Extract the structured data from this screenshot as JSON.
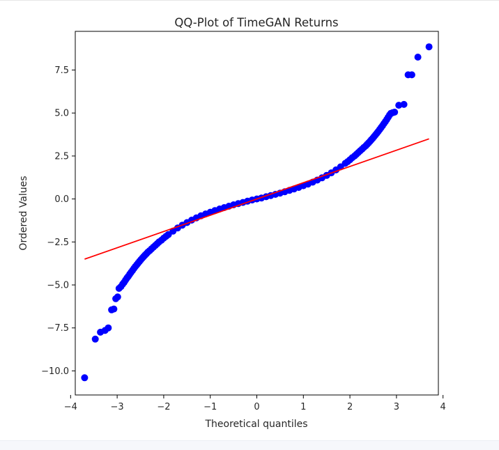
{
  "chart_data": {
    "type": "scatter",
    "title": "QQ-Plot of TimeGAN Returns",
    "xlabel": "Theoretical quantiles",
    "ylabel": "Ordered Values",
    "xlim": [
      -3.9,
      3.9
    ],
    "ylim": [
      -11.4,
      9.75
    ],
    "x_ticks": [
      {
        "value": -4,
        "label": "−4"
      },
      {
        "value": -3,
        "label": "−3"
      },
      {
        "value": -2,
        "label": "−2"
      },
      {
        "value": -1,
        "label": "−1"
      },
      {
        "value": 0,
        "label": "0"
      },
      {
        "value": 1,
        "label": "1"
      },
      {
        "value": 2,
        "label": "2"
      },
      {
        "value": 3,
        "label": "3"
      },
      {
        "value": 4,
        "label": "4"
      }
    ],
    "y_ticks": [
      {
        "value": -10,
        "label": "−10.0"
      },
      {
        "value": -7.5,
        "label": "−7.5"
      },
      {
        "value": -5,
        "label": "−5.0"
      },
      {
        "value": -2.5,
        "label": "−2.5"
      },
      {
        "value": 0,
        "label": "0.0"
      },
      {
        "value": 2.5,
        "label": "2.5"
      },
      {
        "value": 5,
        "label": "5.0"
      },
      {
        "value": 7.5,
        "label": "7.5"
      }
    ],
    "grid": false,
    "series": [
      {
        "marker": "circle",
        "color": "#0000ff",
        "points": [
          [
            -3.7,
            -10.4
          ],
          [
            -3.47,
            -8.15
          ],
          [
            -3.36,
            -7.75
          ],
          [
            -3.26,
            -7.65
          ],
          [
            -3.19,
            -7.5
          ],
          [
            -3.12,
            -6.45
          ],
          [
            -3.07,
            -6.4
          ],
          [
            -3.03,
            -5.8
          ],
          [
            -2.99,
            -5.7
          ],
          [
            -2.96,
            -5.2
          ],
          [
            -2.92,
            -5.1
          ],
          [
            -2.88,
            -4.95
          ],
          [
            -2.85,
            -4.85
          ],
          [
            -2.82,
            -4.72
          ],
          [
            -2.79,
            -4.6
          ],
          [
            -2.76,
            -4.5
          ],
          [
            -2.73,
            -4.38
          ],
          [
            -2.7,
            -4.26
          ],
          [
            -2.67,
            -4.15
          ],
          [
            -2.64,
            -4.04
          ],
          [
            -2.61,
            -3.93
          ],
          [
            -2.58,
            -3.83
          ],
          [
            -2.55,
            -3.73
          ],
          [
            -2.52,
            -3.63
          ],
          [
            -2.49,
            -3.53
          ],
          [
            -2.46,
            -3.44
          ],
          [
            -2.43,
            -3.35
          ],
          [
            -2.4,
            -3.26
          ],
          [
            -2.37,
            -3.18
          ],
          [
            -2.34,
            -3.09
          ],
          [
            -2.3,
            -3.0
          ],
          [
            -2.26,
            -2.9
          ],
          [
            -2.22,
            -2.8
          ],
          [
            -2.18,
            -2.7
          ],
          [
            -2.14,
            -2.6
          ],
          [
            -2.1,
            -2.5
          ],
          [
            -2.05,
            -2.4
          ],
          [
            -2.0,
            -2.28
          ],
          [
            -1.95,
            -2.17
          ],
          [
            -1.9,
            -2.07
          ],
          [
            -1.8,
            -1.87
          ],
          [
            -1.7,
            -1.69
          ],
          [
            -1.6,
            -1.52
          ],
          [
            -1.5,
            -1.37
          ],
          [
            -1.4,
            -1.23
          ],
          [
            -1.3,
            -1.1
          ],
          [
            -1.2,
            -0.98
          ],
          [
            -1.1,
            -0.87
          ],
          [
            -1.0,
            -0.77
          ],
          [
            -0.9,
            -0.67
          ],
          [
            -0.8,
            -0.58
          ],
          [
            -0.7,
            -0.5
          ],
          [
            -0.6,
            -0.42
          ],
          [
            -0.5,
            -0.34
          ],
          [
            -0.4,
            -0.27
          ],
          [
            -0.3,
            -0.2
          ],
          [
            -0.2,
            -0.13
          ],
          [
            -0.1,
            -0.06
          ],
          [
            0.0,
            0.0
          ],
          [
            0.1,
            0.06
          ],
          [
            0.2,
            0.13
          ],
          [
            0.3,
            0.2
          ],
          [
            0.4,
            0.27
          ],
          [
            0.5,
            0.34
          ],
          [
            0.6,
            0.42
          ],
          [
            0.7,
            0.5
          ],
          [
            0.8,
            0.58
          ],
          [
            0.9,
            0.67
          ],
          [
            1.0,
            0.77
          ],
          [
            1.1,
            0.87
          ],
          [
            1.2,
            0.98
          ],
          [
            1.3,
            1.1
          ],
          [
            1.4,
            1.23
          ],
          [
            1.5,
            1.37
          ],
          [
            1.6,
            1.52
          ],
          [
            1.7,
            1.69
          ],
          [
            1.8,
            1.87
          ],
          [
            1.9,
            2.07
          ],
          [
            1.95,
            2.17
          ],
          [
            2.0,
            2.28
          ],
          [
            2.05,
            2.4
          ],
          [
            2.1,
            2.5
          ],
          [
            2.14,
            2.6
          ],
          [
            2.18,
            2.7
          ],
          [
            2.22,
            2.8
          ],
          [
            2.26,
            2.9
          ],
          [
            2.3,
            3.0
          ],
          [
            2.34,
            3.09
          ],
          [
            2.37,
            3.18
          ],
          [
            2.4,
            3.26
          ],
          [
            2.43,
            3.35
          ],
          [
            2.46,
            3.44
          ],
          [
            2.49,
            3.53
          ],
          [
            2.52,
            3.63
          ],
          [
            2.55,
            3.73
          ],
          [
            2.58,
            3.83
          ],
          [
            2.61,
            3.93
          ],
          [
            2.64,
            4.04
          ],
          [
            2.67,
            4.15
          ],
          [
            2.7,
            4.26
          ],
          [
            2.73,
            4.38
          ],
          [
            2.76,
            4.5
          ],
          [
            2.79,
            4.62
          ],
          [
            2.82,
            4.75
          ],
          [
            2.85,
            4.88
          ],
          [
            2.88,
            4.98
          ],
          [
            2.92,
            5.02
          ],
          [
            2.96,
            5.05
          ],
          [
            3.05,
            5.45
          ],
          [
            3.16,
            5.5
          ],
          [
            3.25,
            7.22
          ],
          [
            3.33,
            7.22
          ],
          [
            3.46,
            8.25
          ],
          [
            3.7,
            8.85
          ]
        ]
      }
    ],
    "fit_line": {
      "color": "#ff0000",
      "x": [
        -3.7,
        3.7
      ],
      "y": [
        -3.5,
        3.5
      ]
    }
  }
}
